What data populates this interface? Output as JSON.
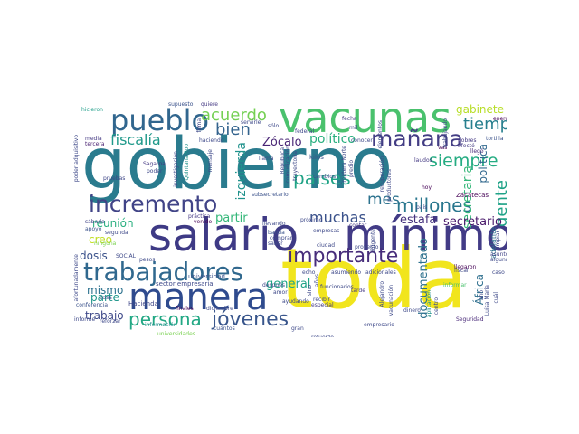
{
  "words": [
    {
      "text": "gobierno",
      "color": "#2a7b8e"
    },
    {
      "text": "toda",
      "color": "#f1e51d"
    },
    {
      "text": "salario",
      "color": "#3e3a85"
    },
    {
      "text": "mínimo",
      "color": "#423b86"
    },
    {
      "text": "vacunas",
      "color": "#4ac16d"
    },
    {
      "text": "manera",
      "color": "#2f4b8e"
    },
    {
      "text": "pueblo",
      "color": "#31668e"
    },
    {
      "text": "trabajadores",
      "color": "#30688e"
    },
    {
      "text": "incremento",
      "color": "#414487"
    },
    {
      "text": "mañana",
      "color": "#433d84"
    },
    {
      "text": "importante",
      "color": "#472d7b"
    },
    {
      "text": "jóvenes",
      "color": "#39568c"
    },
    {
      "text": "persona",
      "color": "#22a884"
    },
    {
      "text": "acuerdo",
      "color": "#75d054"
    },
    {
      "text": "países",
      "color": "#20a386"
    },
    {
      "text": "millones",
      "color": "#2a778e"
    },
    {
      "text": "siempre",
      "color": "#25ac82"
    },
    {
      "text": "tiempo",
      "color": "#277f8e"
    },
    {
      "text": "fiscalía",
      "color": "#1f998a"
    },
    {
      "text": "bien",
      "color": "#33638d"
    },
    {
      "text": "muchas",
      "color": "#3b528b"
    },
    {
      "text": "mes",
      "color": "#2c728e"
    },
    {
      "text": "gente",
      "color": "#1fa287"
    },
    {
      "text": "secretaria",
      "color": "#35b779"
    },
    {
      "text": "general",
      "color": "#20a386"
    },
    {
      "text": "documentado",
      "color": "#2d718e"
    },
    {
      "text": "político",
      "color": "#29af7f"
    },
    {
      "text": "Zócalo",
      "color": "#482475"
    },
    {
      "text": "izquierda",
      "color": "#20928c"
    },
    {
      "text": "estafa",
      "color": "#46327e"
    },
    {
      "text": "secretario",
      "color": "#48186a"
    },
    {
      "text": "gabinete",
      "color": "#b8de29"
    },
    {
      "text": "reunión",
      "color": "#29af7f"
    },
    {
      "text": "partir",
      "color": "#35b779"
    },
    {
      "text": "creo",
      "color": "#c2df23"
    },
    {
      "text": "dosis",
      "color": "#3b528b"
    },
    {
      "text": "mismo",
      "color": "#2c718e"
    },
    {
      "text": "parte",
      "color": "#1f968b"
    },
    {
      "text": "trabajo",
      "color": "#3e4989"
    },
    {
      "text": "política",
      "color": "#31688e"
    },
    {
      "text": "África",
      "color": "#2e6f8e"
    },
    {
      "text": "adelante",
      "color": "#2c728e"
    },
    {
      "text": "Zacatecas",
      "color": "#440154"
    },
    {
      "text": "sector empresarial",
      "color": "#3e4989"
    },
    {
      "text": "Hacienda",
      "color": "#3f4788"
    },
    {
      "text": "universidad",
      "color": "#3b528b"
    },
    {
      "text": "enero",
      "color": "#440154"
    },
    {
      "text": "tortilla",
      "color": "#3b528b"
    },
    {
      "text": "hicieron",
      "color": "#1f9e89"
    },
    {
      "text": "supuesto",
      "color": "#3b528b"
    },
    {
      "text": "quiere",
      "color": "#443983"
    },
    {
      "text": "Sagarpa",
      "color": "#443983"
    },
    {
      "text": "poder",
      "color": "#3e4989"
    },
    {
      "text": "pruebas",
      "color": "#3f4788"
    },
    {
      "text": "tercera",
      "color": "#481f70"
    },
    {
      "text": "media",
      "color": "#443983"
    },
    {
      "text": "sábado",
      "color": "#414487"
    },
    {
      "text": "apoyo",
      "color": "#3b528b"
    },
    {
      "text": "asunto",
      "color": "#414487"
    },
    {
      "text": "llegaron",
      "color": "#440154"
    },
    {
      "text": "fiscal",
      "color": "#3e4989"
    },
    {
      "text": "informar",
      "color": "#4ac16d"
    },
    {
      "text": "Seguridad",
      "color": "#482878"
    },
    {
      "text": "reforzar",
      "color": "#3e4989"
    },
    {
      "text": "información",
      "color": "#21918c"
    },
    {
      "text": "conferencia",
      "color": "#3b528b"
    },
    {
      "text": "informe",
      "color": "#3e4989"
    },
    {
      "text": "cuántos",
      "color": "#3b528b"
    },
    {
      "text": "refuerzo",
      "color": "#3e4989"
    },
    {
      "text": "empresario",
      "color": "#3e4989"
    },
    {
      "text": "especial",
      "color": "#443983"
    },
    {
      "text": "tarde",
      "color": "#443983"
    },
    {
      "text": "amor",
      "color": "#3e4989"
    },
    {
      "text": "finales",
      "color": "#440154"
    },
    {
      "text": "kilos",
      "color": "#3b528b"
    },
    {
      "text": "cambios",
      "color": "#3e4989"
    },
    {
      "text": "hoy",
      "color": "#440154"
    },
    {
      "text": "laudos",
      "color": "#443983"
    },
    {
      "text": "llegó",
      "color": "#482878"
    },
    {
      "text": "pobres",
      "color": "#443983"
    },
    {
      "text": "afectó",
      "color": "#443983"
    },
    {
      "text": "vas",
      "color": "#440154"
    },
    {
      "text": "fecha",
      "color": "#443983"
    },
    {
      "text": "haciendo",
      "color": "#3e4989"
    },
    {
      "text": "llevando",
      "color": "#3e4989"
    },
    {
      "text": "venido",
      "color": "#440154"
    },
    {
      "text": "práctica",
      "color": "#443983"
    },
    {
      "text": "próximo",
      "color": "#3e4989"
    },
    {
      "text": "contar",
      "color": "#443983"
    },
    {
      "text": "ninguna",
      "color": "#7ad151"
    },
    {
      "text": "funcionarios",
      "color": "#3e4989"
    },
    {
      "text": "recibir",
      "color": "#3e4989"
    },
    {
      "text": "comprar",
      "color": "#3e4989"
    },
    {
      "text": "banda",
      "color": "#3b528b"
    },
    {
      "text": "empresas",
      "color": "#3e4989"
    },
    {
      "text": "dirigente",
      "color": "#3e4989"
    },
    {
      "text": "ayudando",
      "color": "#3e4989"
    },
    {
      "text": "asumiendo",
      "color": "#3e4989"
    },
    {
      "text": "adicionales",
      "color": "#3e4989"
    },
    {
      "text": "alguna",
      "color": "#3e4989"
    },
    {
      "text": "limpiar",
      "color": "#3e4989"
    },
    {
      "text": "universidades",
      "color": "#7ad151"
    },
    {
      "text": "subsecretario",
      "color": "#3b528b"
    },
    {
      "text": "Quintana Roo",
      "color": "#21918c"
    },
    {
      "text": "República",
      "color": "#3e4989"
    },
    {
      "text": "investigación",
      "color": "#3e4989"
    },
    {
      "text": "mensaje",
      "color": "#3e4989"
    },
    {
      "text": "servirle",
      "color": "#3e4989"
    },
    {
      "text": "sólo",
      "color": "#3e4989"
    },
    {
      "text": "federal",
      "color": "#3e4989"
    },
    {
      "text": "firma",
      "color": "#3e4989"
    },
    {
      "text": "llama",
      "color": "#3e4989"
    },
    {
      "text": "conocer",
      "color": "#3e4989"
    },
    {
      "text": "trayectoria",
      "color": "#3e4989"
    },
    {
      "text": "comunicación",
      "color": "#3e4989"
    },
    {
      "text": "elementos",
      "color": "#3e4989"
    },
    {
      "text": "Frontera Norte",
      "color": "#3e4989"
    },
    {
      "text": "predio",
      "color": "#3e4989"
    },
    {
      "text": "recuperación",
      "color": "#3e4989"
    },
    {
      "text": "productores",
      "color": "#3e4989"
    },
    {
      "text": "trabajando",
      "color": "#3e4989"
    },
    {
      "text": "Alejandro",
      "color": "#3e4989"
    },
    {
      "text": "vacunación",
      "color": "#3e4989"
    },
    {
      "text": "aplicación",
      "color": "#21918c"
    },
    {
      "text": "centro",
      "color": "#3e4989"
    },
    {
      "text": "Luisa María",
      "color": "#3e4989"
    },
    {
      "text": "cuál",
      "color": "#3e4989"
    },
    {
      "text": "año",
      "color": "#3e4989"
    },
    {
      "text": "caso",
      "color": "#3e4989"
    },
    {
      "text": "sino",
      "color": "#3e4989"
    },
    {
      "text": "años",
      "color": "#3e4989"
    },
    {
      "text": "después",
      "color": "#3e4989"
    },
    {
      "text": "ciudad",
      "color": "#3e4989"
    },
    {
      "text": "diciembre",
      "color": "#3e4989"
    },
    {
      "text": "SOCIAL",
      "color": "#3e4989"
    },
    {
      "text": "pesos",
      "color": "#3e4989"
    },
    {
      "text": "poder adquisitivo",
      "color": "#3e4989"
    },
    {
      "text": "afortunadamente",
      "color": "#3e4989"
    },
    {
      "text": "cosa",
      "color": "#3e4989"
    },
    {
      "text": "segunda",
      "color": "#3e4989"
    },
    {
      "text": "dinero",
      "color": "#3e4989"
    },
    {
      "text": "gran",
      "color": "#3e4989"
    },
    {
      "text": "echo",
      "color": "#3e4989"
    },
    {
      "text": "saber",
      "color": "#3e4989"
    },
    {
      "text": "mil",
      "color": "#3e4989"
    },
    {
      "text": "país",
      "color": "#3e4989"
    },
    {
      "text": "proyecto",
      "color": "#3e4989"
    }
  ]
}
